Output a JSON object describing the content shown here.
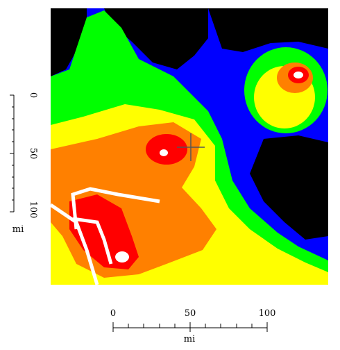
{
  "vertical_scale": {
    "ticks": [
      0,
      50,
      100
    ],
    "unit": "mi"
  },
  "horizontal_scale": {
    "ticks": [
      0,
      50,
      100
    ],
    "unit": "mi"
  }
}
